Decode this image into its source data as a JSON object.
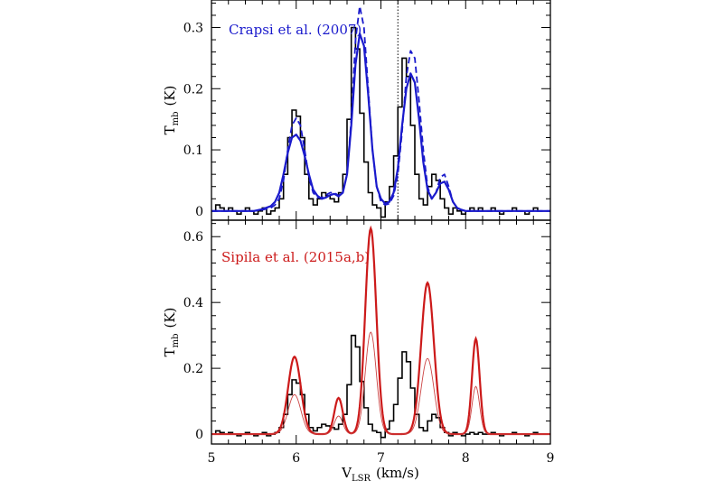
{
  "chart_data": [
    {
      "type": "line",
      "panel": "top",
      "annotation": "Crapsi et al. (2007)",
      "annotation_color": "#1a1acc",
      "ylabel": "T",
      "ylabel_sub": "mb",
      "ylabel_unit": "(K)",
      "xlim": [
        5,
        9
      ],
      "ylim": [
        -0.015,
        0.345
      ],
      "yticks": [
        0,
        0.1,
        0.2,
        0.3
      ],
      "ytick_labels": [
        "0",
        "0.1",
        "0.2",
        "0.3"
      ],
      "vline_x": 7.2,
      "series": [
        {
          "style": "step-black",
          "color": "#000000",
          "step": 0.05,
          "x": [
            5.0,
            5.05,
            5.1,
            5.15,
            5.2,
            5.25,
            5.3,
            5.35,
            5.4,
            5.45,
            5.5,
            5.55,
            5.6,
            5.65,
            5.7,
            5.75,
            5.8,
            5.85,
            5.9,
            5.95,
            6.0,
            6.05,
            6.1,
            6.15,
            6.2,
            6.25,
            6.3,
            6.35,
            6.4,
            6.45,
            6.5,
            6.55,
            6.6,
            6.65,
            6.7,
            6.75,
            6.8,
            6.85,
            6.9,
            6.95,
            7.0,
            7.05,
            7.1,
            7.15,
            7.2,
            7.25,
            7.3,
            7.35,
            7.4,
            7.45,
            7.5,
            7.55,
            7.6,
            7.65,
            7.7,
            7.75,
            7.8,
            7.85,
            7.9,
            7.95,
            8.0,
            8.05,
            8.1,
            8.15,
            8.2,
            8.25,
            8.3,
            8.35,
            8.4,
            8.45,
            8.5,
            8.55,
            8.6,
            8.65,
            8.7,
            8.75,
            8.8,
            8.85,
            8.9,
            8.95
          ],
          "y": [
            0,
            0.01,
            0.005,
            0,
            0.005,
            0,
            -0.005,
            0,
            0.005,
            0,
            -0.005,
            0,
            0.005,
            -0.005,
            0,
            0.005,
            0.02,
            0.06,
            0.12,
            0.165,
            0.155,
            0.12,
            0.06,
            0.02,
            0.01,
            0.02,
            0.03,
            0.025,
            0.02,
            0.015,
            0.03,
            0.06,
            0.15,
            0.3,
            0.265,
            0.16,
            0.08,
            0.03,
            0.01,
            0.005,
            -0.01,
            0.015,
            0.04,
            0.09,
            0.17,
            0.25,
            0.22,
            0.14,
            0.06,
            0.02,
            0.01,
            0.04,
            0.06,
            0.05,
            0.02,
            0.005,
            -0.005,
            0.005,
            0,
            -0.005,
            0,
            0.005,
            0,
            0.005,
            0,
            0,
            0.005,
            0,
            -0.005,
            0,
            0,
            0.005,
            0,
            0,
            -0.005,
            0,
            0.005,
            0,
            0,
            0
          ]
        },
        {
          "style": "dashed-blue",
          "color": "#1a1acc",
          "x": [
            5.0,
            5.1,
            5.2,
            5.3,
            5.4,
            5.5,
            5.6,
            5.7,
            5.75,
            5.8,
            5.85,
            5.9,
            5.95,
            6.0,
            6.05,
            6.1,
            6.15,
            6.2,
            6.25,
            6.3,
            6.35,
            6.4,
            6.45,
            6.5,
            6.55,
            6.6,
            6.65,
            6.7,
            6.75,
            6.8,
            6.85,
            6.9,
            6.95,
            7.0,
            7.05,
            7.1,
            7.15,
            7.2,
            7.25,
            7.3,
            7.35,
            7.4,
            7.45,
            7.5,
            7.55,
            7.6,
            7.65,
            7.7,
            7.75,
            7.8,
            7.85,
            7.9,
            7.95,
            8.0,
            8.05,
            8.1,
            8.15,
            8.2,
            8.3,
            8.4,
            8.5,
            8.6,
            8.7,
            8.8,
            8.9,
            9.0
          ],
          "y": [
            0,
            0,
            0,
            0,
            0,
            0,
            0.002,
            0.005,
            0.01,
            0.02,
            0.05,
            0.1,
            0.14,
            0.152,
            0.14,
            0.1,
            0.055,
            0.03,
            0.022,
            0.022,
            0.026,
            0.03,
            0.03,
            0.025,
            0.03,
            0.06,
            0.15,
            0.28,
            0.335,
            0.3,
            0.2,
            0.1,
            0.04,
            0.015,
            0.01,
            0.012,
            0.025,
            0.06,
            0.13,
            0.22,
            0.262,
            0.25,
            0.18,
            0.1,
            0.04,
            0.02,
            0.03,
            0.055,
            0.06,
            0.04,
            0.015,
            0.005,
            0.002,
            0,
            0,
            0,
            0,
            0,
            0,
            0,
            0,
            0,
            0,
            0,
            0,
            0
          ]
        },
        {
          "style": "solid-blue",
          "color": "#1a1acc",
          "x": [
            5.0,
            5.1,
            5.2,
            5.3,
            5.4,
            5.5,
            5.6,
            5.7,
            5.75,
            5.8,
            5.85,
            5.9,
            5.95,
            6.0,
            6.05,
            6.1,
            6.15,
            6.2,
            6.25,
            6.3,
            6.35,
            6.4,
            6.45,
            6.5,
            6.55,
            6.6,
            6.65,
            6.7,
            6.75,
            6.8,
            6.85,
            6.9,
            6.95,
            7.0,
            7.05,
            7.1,
            7.15,
            7.2,
            7.25,
            7.3,
            7.35,
            7.4,
            7.45,
            7.5,
            7.55,
            7.6,
            7.65,
            7.7,
            7.75,
            7.8,
            7.85,
            7.9,
            7.95,
            8.0,
            8.05,
            8.1,
            8.15,
            8.2,
            8.3,
            8.4,
            8.5,
            8.6,
            8.7,
            8.8,
            8.9,
            9.0
          ],
          "y": [
            0,
            0,
            0,
            0,
            0,
            0,
            0.003,
            0.008,
            0.015,
            0.03,
            0.06,
            0.095,
            0.12,
            0.125,
            0.115,
            0.09,
            0.06,
            0.035,
            0.025,
            0.02,
            0.022,
            0.026,
            0.028,
            0.024,
            0.03,
            0.06,
            0.14,
            0.24,
            0.29,
            0.27,
            0.19,
            0.1,
            0.04,
            0.02,
            0.012,
            0.015,
            0.03,
            0.07,
            0.14,
            0.2,
            0.225,
            0.21,
            0.15,
            0.08,
            0.035,
            0.02,
            0.03,
            0.045,
            0.048,
            0.035,
            0.015,
            0.005,
            0.002,
            0,
            0,
            0,
            0,
            0,
            0,
            0,
            0,
            0,
            0,
            0,
            0,
            0
          ]
        }
      ]
    },
    {
      "type": "line",
      "panel": "bottom",
      "annotation": "Sipila et al. (2015a,b)",
      "annotation_color": "#cc1a1a",
      "ylabel": "T",
      "ylabel_sub": "mb",
      "ylabel_unit": "(K)",
      "xlabel": "V",
      "xlabel_sub": "LSR",
      "xlabel_unit": "(km/s)",
      "xlim": [
        5,
        9
      ],
      "ylim": [
        -0.03,
        0.65
      ],
      "xticks": [
        5,
        6,
        7,
        8,
        9
      ],
      "xtick_labels": [
        "5",
        "6",
        "7",
        "8",
        "9"
      ],
      "yticks": [
        0,
        0.2,
        0.4,
        0.6
      ],
      "ytick_labels": [
        "0",
        "0.2",
        "0.4",
        "0.6"
      ],
      "series": [
        {
          "style": "step-black",
          "color": "#000000",
          "step": 0.05,
          "x": [
            5.0,
            5.05,
            5.1,
            5.15,
            5.2,
            5.25,
            5.3,
            5.35,
            5.4,
            5.45,
            5.5,
            5.55,
            5.6,
            5.65,
            5.7,
            5.75,
            5.8,
            5.85,
            5.9,
            5.95,
            6.0,
            6.05,
            6.1,
            6.15,
            6.2,
            6.25,
            6.3,
            6.35,
            6.4,
            6.45,
            6.5,
            6.55,
            6.6,
            6.65,
            6.7,
            6.75,
            6.8,
            6.85,
            6.9,
            6.95,
            7.0,
            7.05,
            7.1,
            7.15,
            7.2,
            7.25,
            7.3,
            7.35,
            7.4,
            7.45,
            7.5,
            7.55,
            7.6,
            7.65,
            7.7,
            7.75,
            7.8,
            7.85,
            7.9,
            7.95,
            8.0,
            8.05,
            8.1,
            8.15,
            8.2,
            8.25,
            8.3,
            8.35,
            8.4,
            8.45,
            8.5,
            8.55,
            8.6,
            8.65,
            8.7,
            8.75,
            8.8,
            8.85,
            8.9,
            8.95
          ],
          "y": [
            0,
            0.01,
            0.005,
            0,
            0.005,
            0,
            -0.005,
            0,
            0.005,
            0,
            -0.005,
            0,
            0.005,
            -0.005,
            0,
            0.005,
            0.02,
            0.06,
            0.12,
            0.165,
            0.155,
            0.12,
            0.06,
            0.02,
            0.01,
            0.02,
            0.03,
            0.025,
            0.02,
            0.015,
            0.03,
            0.06,
            0.15,
            0.3,
            0.265,
            0.16,
            0.08,
            0.03,
            0.01,
            0.005,
            -0.01,
            0.015,
            0.04,
            0.09,
            0.17,
            0.25,
            0.22,
            0.14,
            0.06,
            0.02,
            0.01,
            0.04,
            0.06,
            0.05,
            0.02,
            0.005,
            -0.005,
            0.005,
            0,
            -0.005,
            0,
            0.005,
            0,
            0.005,
            0,
            0,
            0.005,
            0,
            -0.005,
            0,
            0,
            0.005,
            0,
            0,
            -0.005,
            0,
            0.005,
            0,
            0,
            0
          ]
        },
        {
          "style": "thick-red",
          "color": "#cc1a1a",
          "width": 2.2,
          "components": [
            {
              "center": 5.98,
              "amp": 0.235,
              "sigma": 0.075
            },
            {
              "center": 6.5,
              "amp": 0.11,
              "sigma": 0.05
            },
            {
              "center": 6.88,
              "amp": 0.625,
              "sigma": 0.065
            },
            {
              "center": 7.55,
              "amp": 0.46,
              "sigma": 0.075
            },
            {
              "center": 8.12,
              "amp": 0.29,
              "sigma": 0.045
            }
          ]
        },
        {
          "style": "thin-red",
          "color": "#cc4444",
          "width": 0.9,
          "components": [
            {
              "center": 5.98,
              "amp": 0.12,
              "sigma": 0.075
            },
            {
              "center": 6.5,
              "amp": 0.055,
              "sigma": 0.05
            },
            {
              "center": 6.88,
              "amp": 0.31,
              "sigma": 0.065
            },
            {
              "center": 7.55,
              "amp": 0.23,
              "sigma": 0.075
            },
            {
              "center": 8.12,
              "amp": 0.145,
              "sigma": 0.045
            }
          ]
        }
      ]
    }
  ]
}
